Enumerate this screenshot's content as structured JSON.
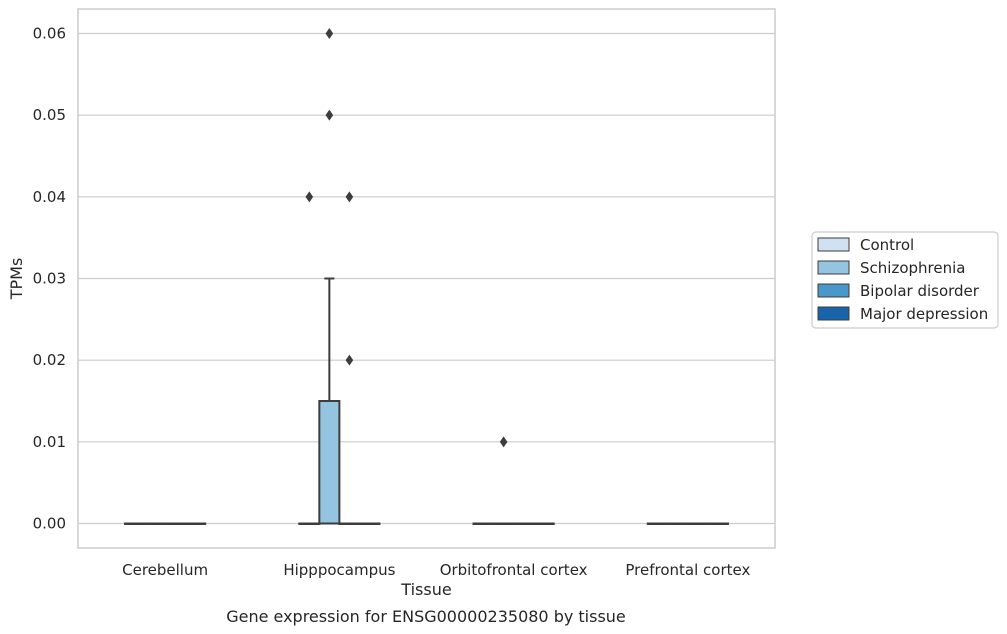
{
  "chart_data": {
    "type": "box",
    "xlabel": "Tissue",
    "ylabel": "TPMs",
    "caption": "Gene expression for ENSG00000235080 by tissue",
    "ylim": [
      -0.003,
      0.063
    ],
    "yticks": [
      "0.00",
      "0.01",
      "0.02",
      "0.03",
      "0.04",
      "0.05",
      "0.06"
    ],
    "ytick_values": [
      0,
      0.01,
      0.02,
      0.03,
      0.04,
      0.05,
      0.06
    ],
    "grid": true,
    "legend_position": "right",
    "categories": [
      "Cerebellum",
      "Hipppocampus",
      "Orbitofrontal cortex",
      "Prefrontal cortex"
    ],
    "series": [
      {
        "name": "Control",
        "color": "#d0e1f2"
      },
      {
        "name": "Schizophrenia",
        "color": "#94c4df"
      },
      {
        "name": "Bipolar disorder",
        "color": "#4a98c9"
      },
      {
        "name": "Major depression",
        "color": "#1764ab"
      }
    ],
    "boxes": [
      {
        "category": "Cerebellum",
        "series": "Control",
        "q1": 0,
        "median": 0,
        "q3": 0,
        "whisker_low": 0,
        "whisker_high": 0,
        "outliers": []
      },
      {
        "category": "Cerebellum",
        "series": "Schizophrenia",
        "q1": 0,
        "median": 0,
        "q3": 0,
        "whisker_low": 0,
        "whisker_high": 0,
        "outliers": []
      },
      {
        "category": "Cerebellum",
        "series": "Bipolar disorder",
        "q1": 0,
        "median": 0,
        "q3": 0,
        "whisker_low": 0,
        "whisker_high": 0,
        "outliers": []
      },
      {
        "category": "Cerebellum",
        "series": "Major depression",
        "q1": 0,
        "median": 0,
        "q3": 0,
        "whisker_low": 0,
        "whisker_high": 0,
        "outliers": []
      },
      {
        "category": "Hipppocampus",
        "series": "Control",
        "q1": 0,
        "median": 0,
        "q3": 0,
        "whisker_low": 0,
        "whisker_high": 0,
        "outliers": [
          0.04
        ]
      },
      {
        "category": "Hipppocampus",
        "series": "Schizophrenia",
        "q1": 0,
        "median": 0,
        "q3": 0.015,
        "whisker_low": 0,
        "whisker_high": 0.03,
        "outliers": [
          0.05,
          0.06
        ]
      },
      {
        "category": "Hipppocampus",
        "series": "Bipolar disorder",
        "q1": 0,
        "median": 0,
        "q3": 0,
        "whisker_low": 0,
        "whisker_high": 0,
        "outliers": [
          0.02,
          0.04
        ]
      },
      {
        "category": "Hipppocampus",
        "series": "Major depression",
        "q1": 0,
        "median": 0,
        "q3": 0,
        "whisker_low": 0,
        "whisker_high": 0,
        "outliers": []
      },
      {
        "category": "Orbitofrontal cortex",
        "series": "Control",
        "q1": 0,
        "median": 0,
        "q3": 0,
        "whisker_low": 0,
        "whisker_high": 0,
        "outliers": []
      },
      {
        "category": "Orbitofrontal cortex",
        "series": "Schizophrenia",
        "q1": 0,
        "median": 0,
        "q3": 0,
        "whisker_low": 0,
        "whisker_high": 0,
        "outliers": [
          0.01
        ]
      },
      {
        "category": "Orbitofrontal cortex",
        "series": "Bipolar disorder",
        "q1": 0,
        "median": 0,
        "q3": 0,
        "whisker_low": 0,
        "whisker_high": 0,
        "outliers": []
      },
      {
        "category": "Orbitofrontal cortex",
        "series": "Major depression",
        "q1": 0,
        "median": 0,
        "q3": 0,
        "whisker_low": 0,
        "whisker_high": 0,
        "outliers": []
      },
      {
        "category": "Prefrontal cortex",
        "series": "Control",
        "q1": 0,
        "median": 0,
        "q3": 0,
        "whisker_low": 0,
        "whisker_high": 0,
        "outliers": []
      },
      {
        "category": "Prefrontal cortex",
        "series": "Schizophrenia",
        "q1": 0,
        "median": 0,
        "q3": 0,
        "whisker_low": 0,
        "whisker_high": 0,
        "outliers": []
      },
      {
        "category": "Prefrontal cortex",
        "series": "Bipolar disorder",
        "q1": 0,
        "median": 0,
        "q3": 0,
        "whisker_low": 0,
        "whisker_high": 0,
        "outliers": []
      },
      {
        "category": "Prefrontal cortex",
        "series": "Major depression",
        "q1": 0,
        "median": 0,
        "q3": 0,
        "whisker_low": 0,
        "whisker_high": 0,
        "outliers": []
      }
    ]
  }
}
